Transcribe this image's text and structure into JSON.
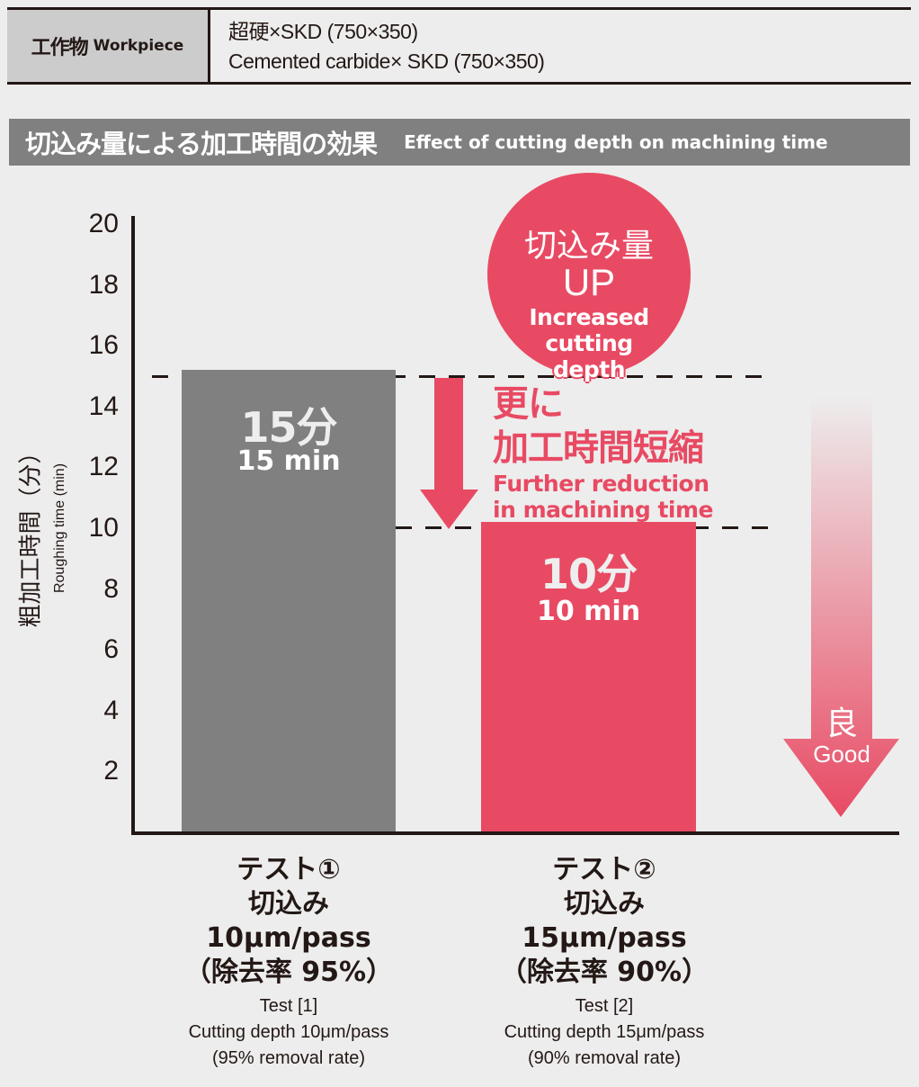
{
  "workpiece": {
    "label_jp": "工作物",
    "label_en": "Workpiece",
    "value_line1": "超硬×SKD (750×350)",
    "value_line2": "Cemented carbide× SKD (750×350)"
  },
  "section_title": {
    "jp": "切込み量による加工時間の効果",
    "en": "Effect of cutting depth on machining time"
  },
  "colors": {
    "background": "#ededed",
    "bar_test1": "#808080",
    "bar_test2": "#e84a63",
    "accent_red": "#e84a63",
    "title_bar": "#808080",
    "table_label_cell": "#cccccc",
    "axis": "#231815"
  },
  "callout_circle": {
    "jp": "切込み量",
    "up": "UP",
    "en_line1": "Increased cutting",
    "en_line2": "depth"
  },
  "reduction_note": {
    "jp_line1": "更に",
    "jp_line2": "加工時間短縮",
    "en_line1": "Further reduction",
    "en_line2": "in machining time"
  },
  "good_arrow": {
    "jp": "良",
    "en": "Good"
  },
  "chart_data": {
    "type": "bar",
    "title": "切込み量による加工時間の効果 Effect of cutting depth on machining time",
    "xlabel": "",
    "ylabel": "粗加工時間（分） Roughing time (min)",
    "ylabel_jp": "粗加工時間（分）",
    "ylabel_en": "Roughing time (min)",
    "ylim": [
      0,
      20
    ],
    "yticks": [
      "20",
      "18",
      "16",
      "14",
      "12",
      "10",
      "8",
      "6",
      "4",
      "2"
    ],
    "categories": [
      "Test [1]",
      "Test [2]"
    ],
    "values": [
      15,
      10
    ],
    "bar_labels": [
      {
        "jp": "15分",
        "en": "15 min"
      },
      {
        "jp": "10分",
        "en": "10 min"
      }
    ],
    "category_labels": [
      {
        "jp_line1": "テスト①",
        "jp_line2": "切込み",
        "jp_line3": "10μm/pass",
        "jp_line4": "（除去率 95%）",
        "en_line1": "Test [1]",
        "en_line2": "Cutting depth 10μm/pass",
        "en_line3": "(95% removal rate)"
      },
      {
        "jp_line1": "テスト②",
        "jp_line2": "切込み",
        "jp_line3": "15μm/pass",
        "jp_line4": "（除去率 90%）",
        "en_line1": "Test [2]",
        "en_line2": "Cutting depth 15μm/pass",
        "en_line3": "(90% removal rate)"
      }
    ],
    "reference_lines": [
      15,
      10
    ],
    "grid": false,
    "legend": "none",
    "annotations": [
      "切込み量 UP Increased cutting depth",
      "更に加工時間短縮 Further reduction in machining time",
      "良 Good"
    ]
  }
}
